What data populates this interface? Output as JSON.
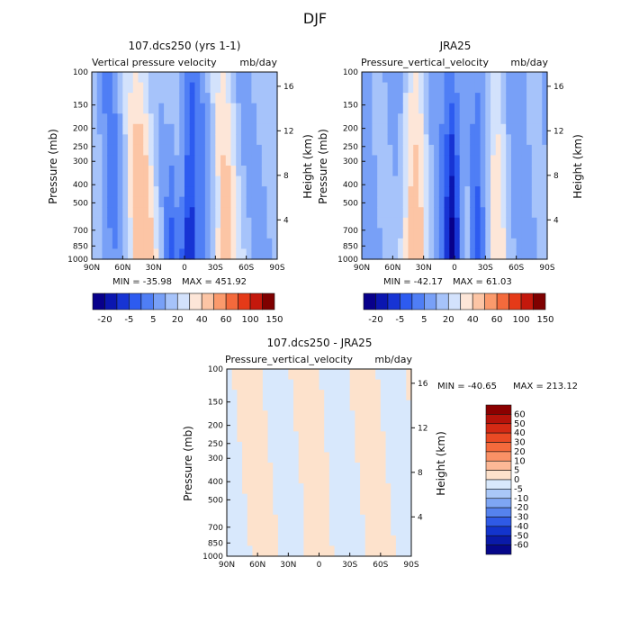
{
  "figure": {
    "title": "DJF"
  },
  "chart_data": [
    {
      "type": "heatmap",
      "model": "107.dcs250 (yrs 1-1)",
      "title": "Vertical pressure velocity",
      "units": "mb/day",
      "xlabel": "",
      "ylabel": "Pressure (mb)",
      "y2label": "Height (km)",
      "x_ticks": [
        "90N",
        "60N",
        "30N",
        "0",
        "30S",
        "60S",
        "90S"
      ],
      "y_ticks": [
        100,
        150,
        200,
        250,
        300,
        400,
        500,
        700,
        850,
        1000
      ],
      "y2_ticks": [
        4,
        8,
        12,
        16
      ],
      "ylim": [
        1000,
        100
      ],
      "min_text": "MIN = -35.98",
      "max_text": "MAX = 451.92",
      "colorbar_labels": [
        "-20",
        "-5",
        "5",
        "20",
        "40",
        "60",
        "100",
        "150"
      ],
      "colorbar_colors": [
        "#08008b",
        "#0b16b0",
        "#1734d4",
        "#2d5bf0",
        "#4f7ef5",
        "#78a0f7",
        "#a6c3fa",
        "#d3e2fc",
        "#fde6d8",
        "#fcc5a5",
        "#fb9a6c",
        "#f46a3c",
        "#e53a18",
        "#c4180c",
        "#7f0000"
      ]
    },
    {
      "type": "heatmap",
      "model": "JRA25",
      "title": "Pressure_vertical_velocity",
      "units": "mb/day",
      "xlabel": "",
      "ylabel": "Pressure (mb)",
      "y2label": "Height (km)",
      "x_ticks": [
        "90N",
        "60N",
        "30N",
        "0",
        "30S",
        "60S",
        "90S"
      ],
      "y_ticks": [
        100,
        150,
        200,
        250,
        300,
        400,
        500,
        700,
        850,
        1000
      ],
      "y2_ticks": [
        4,
        8,
        12,
        16
      ],
      "ylim": [
        1000,
        100
      ],
      "min_text": "MIN = -42.17",
      "max_text": "MAX = 61.03",
      "colorbar_labels": [
        "-20",
        "-5",
        "5",
        "20",
        "40",
        "60",
        "100",
        "150"
      ],
      "colorbar_colors": [
        "#08008b",
        "#0b16b0",
        "#1734d4",
        "#2d5bf0",
        "#4f7ef5",
        "#78a0f7",
        "#a6c3fa",
        "#d3e2fc",
        "#fde6d8",
        "#fcc5a5",
        "#fb9a6c",
        "#f46a3c",
        "#e53a18",
        "#c4180c",
        "#7f0000"
      ]
    },
    {
      "type": "heatmap",
      "model": "107.dcs250 - JRA25",
      "title": "Pressure_vertical_velocity",
      "units": "mb/day",
      "xlabel": "",
      "ylabel": "Pressure (mb)",
      "y2label": "Height (km)",
      "x_ticks": [
        "90N",
        "60N",
        "30N",
        "0",
        "30S",
        "60S",
        "90S"
      ],
      "y_ticks": [
        100,
        150,
        200,
        250,
        300,
        400,
        500,
        700,
        850,
        1000
      ],
      "y2_ticks": [
        4,
        8,
        12,
        16
      ],
      "ylim": [
        1000,
        100
      ],
      "min_text": "MIN = -40.65",
      "max_text": "MAX = 213.12",
      "colorbar_labels": [
        "60",
        "50",
        "40",
        "30",
        "20",
        "10",
        "5",
        "0",
        "-5",
        "-10",
        "-20",
        "-30",
        "-40",
        "-50",
        "-60"
      ],
      "colorbar_colors": [
        "#8b0000",
        "#b5130a",
        "#d42a14",
        "#ea4a24",
        "#f56a3c",
        "#fa9166",
        "#fcb896",
        "#fde2cc",
        "#d8e8fc",
        "#aac8f8",
        "#7ea6f4",
        "#5582ee",
        "#2f5ae6",
        "#1334cc",
        "#0a1aa8",
        "#06078a"
      ]
    }
  ]
}
